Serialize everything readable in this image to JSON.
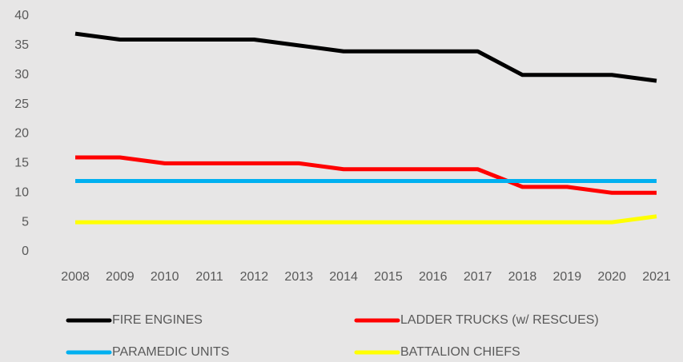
{
  "chart_data": {
    "type": "line",
    "categories": [
      "2008",
      "2009",
      "2010",
      "2011",
      "2012",
      "2013",
      "2014",
      "2015",
      "2016",
      "2017",
      "2018",
      "2019",
      "2020",
      "2021"
    ],
    "series": [
      {
        "name": "FIRE ENGINES",
        "color": "#000000",
        "values": [
          37,
          36,
          36,
          36,
          36,
          35,
          34,
          34,
          34,
          34,
          30,
          30,
          30,
          29
        ]
      },
      {
        "name": "LADDER TRUCKS (w/ RESCUES)",
        "color": "#ff0000",
        "values": [
          16,
          16,
          15,
          15,
          15,
          15,
          14,
          14,
          14,
          14,
          11,
          11,
          10,
          10
        ]
      },
      {
        "name": "PARAMEDIC UNITS",
        "color": "#00b0f0",
        "values": [
          12,
          12,
          12,
          12,
          12,
          12,
          12,
          12,
          12,
          12,
          12,
          12,
          12,
          12
        ]
      },
      {
        "name": "BATTALION CHIEFS",
        "color": "#ffff00",
        "values": [
          5,
          5,
          5,
          5,
          5,
          5,
          5,
          5,
          5,
          5,
          5,
          5,
          5,
          6
        ]
      }
    ],
    "ylim": [
      0,
      40
    ],
    "yticks": [
      0,
      5,
      10,
      15,
      20,
      25,
      30,
      35,
      40
    ],
    "grid": false,
    "legend": "bottom"
  }
}
